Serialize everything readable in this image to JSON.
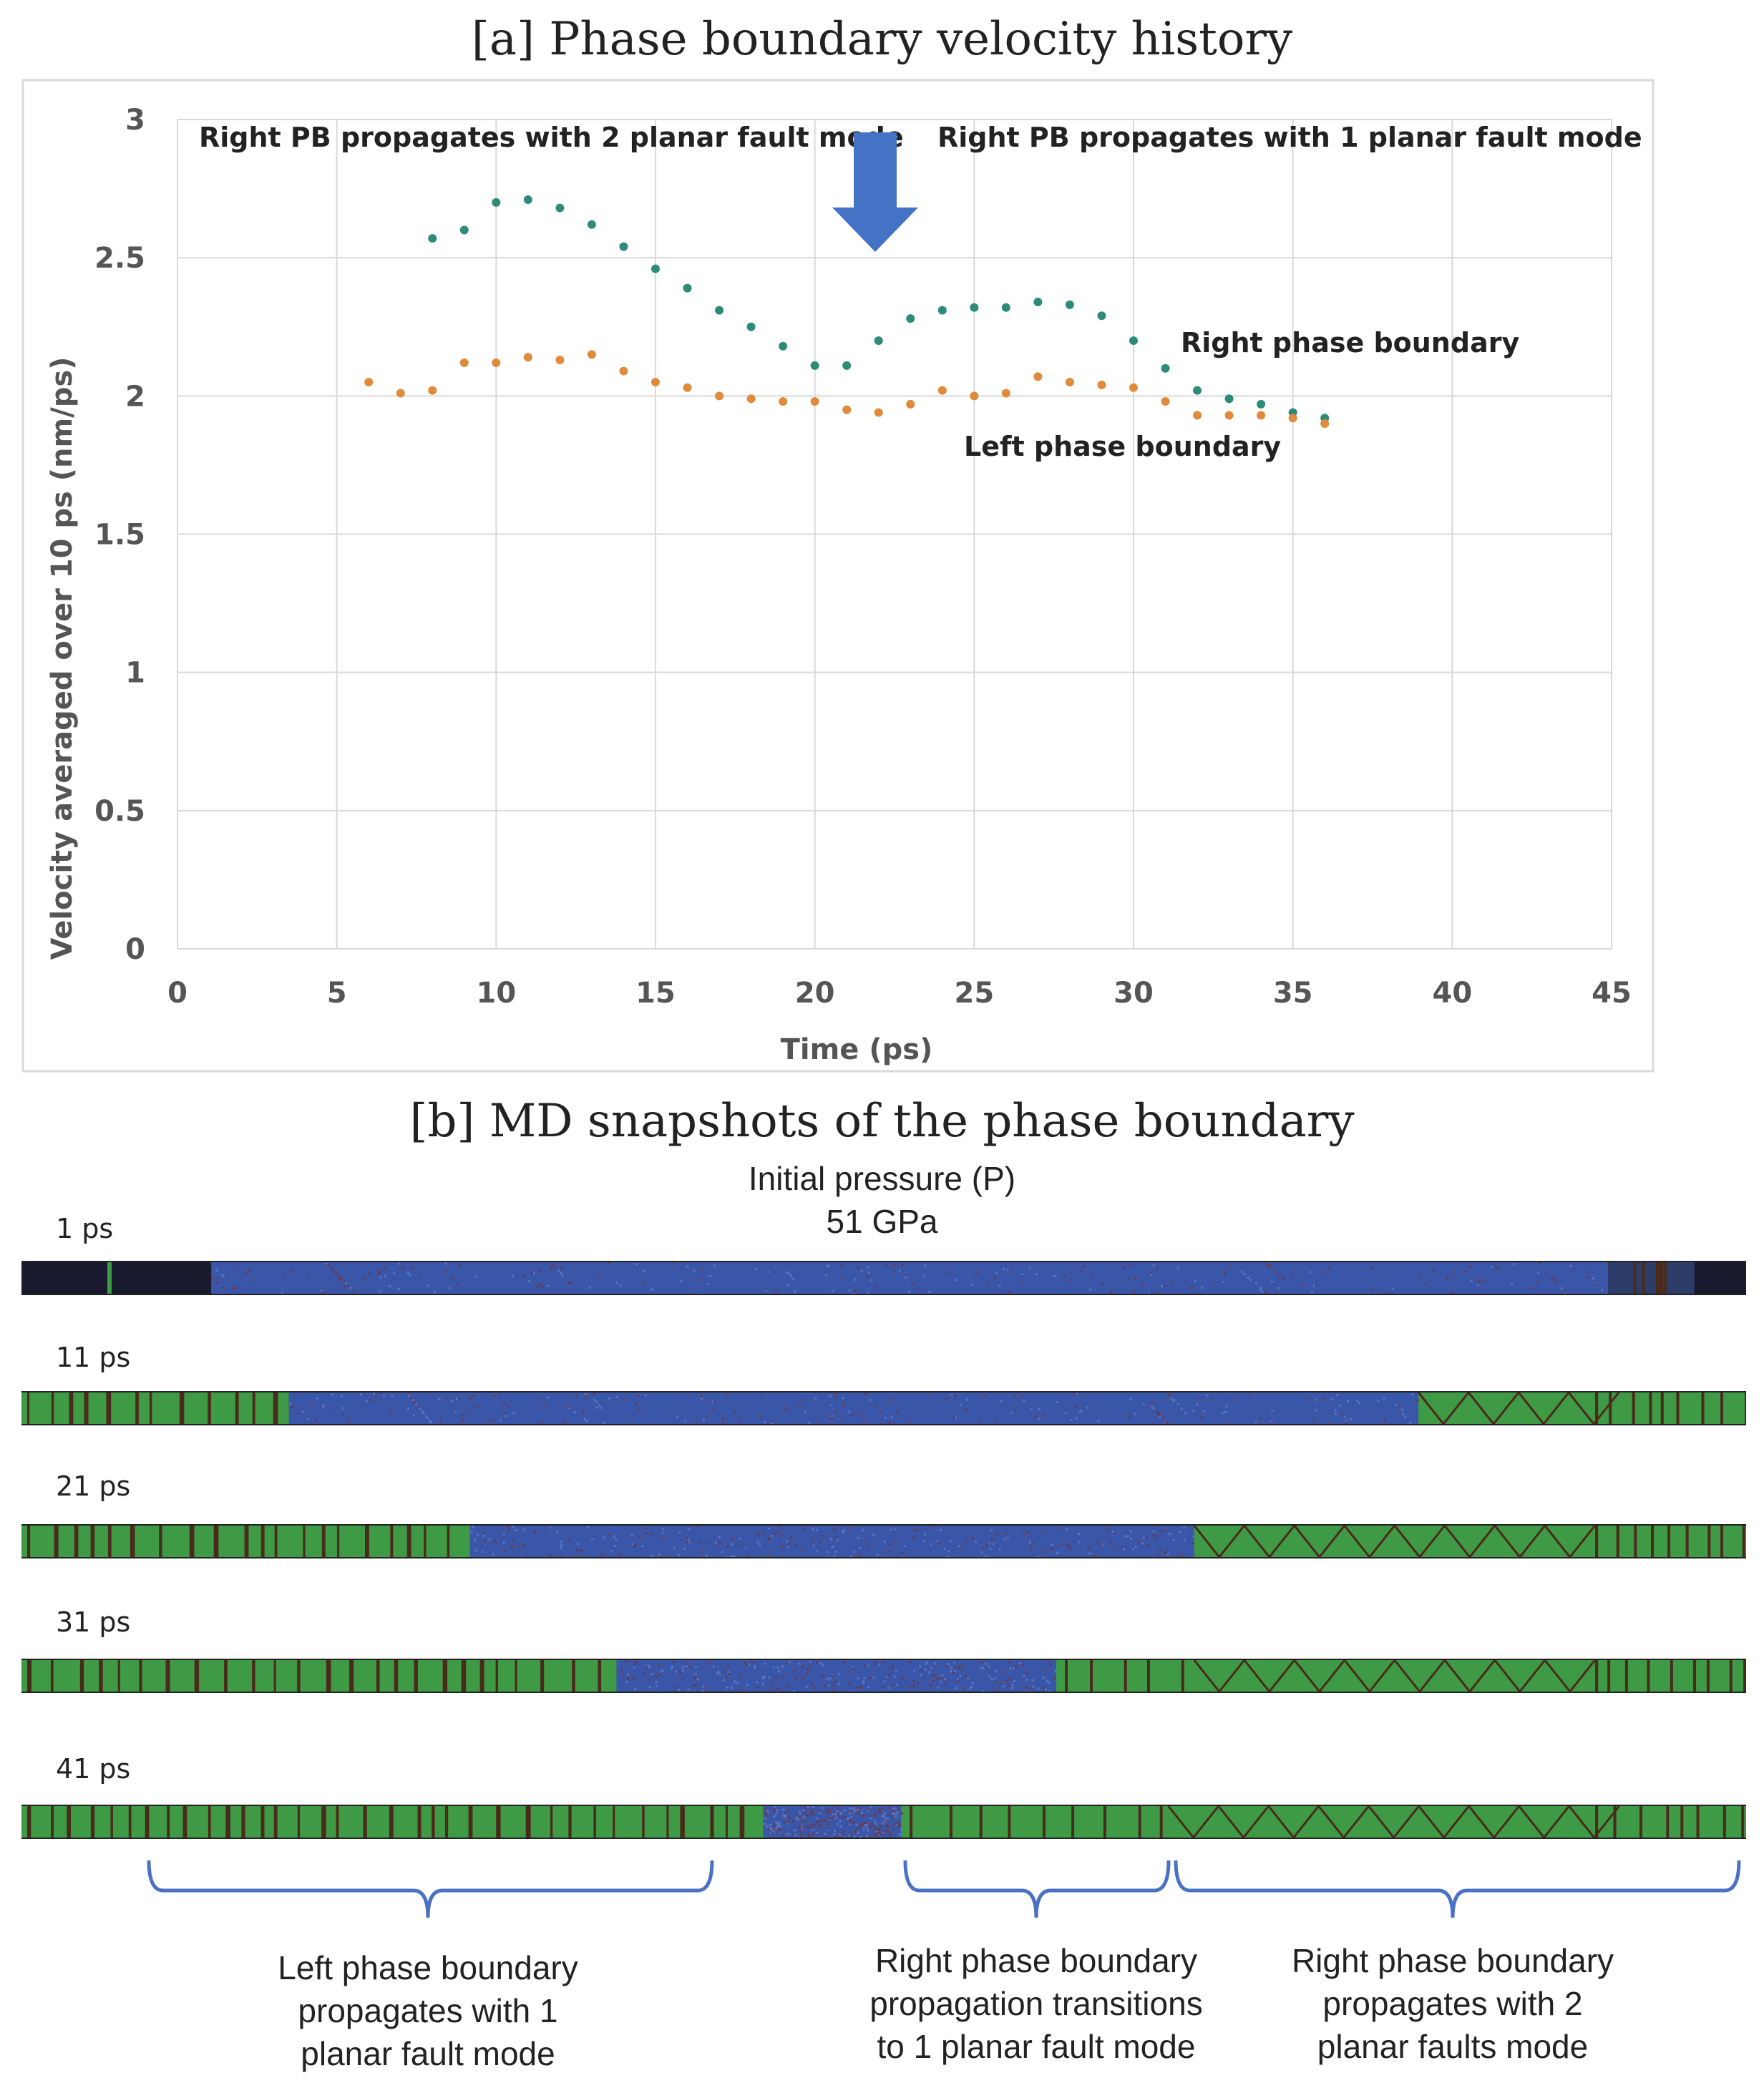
{
  "panel_a_title": "[a] Phase boundary velocity history",
  "panel_b_title": "[b] MD snapshots of the phase boundary",
  "chart_data": {
    "type": "scatter",
    "title": "[a] Phase boundary velocity history",
    "xlabel": "Time (ps)",
    "ylabel": "Velocity averaged over 10 ps (nm/ps)",
    "xlim": [
      0,
      45
    ],
    "ylim": [
      0,
      3
    ],
    "xticks": [
      "0",
      "5",
      "10",
      "15",
      "20",
      "25",
      "30",
      "35",
      "40",
      "45"
    ],
    "yticks": [
      "0",
      "0.5",
      "1",
      "1.5",
      "2",
      "2.5",
      "3"
    ],
    "grid": true,
    "series": [
      {
        "name": "Right phase boundary",
        "color": "#2e8b7a",
        "x": [
          8,
          9,
          10,
          11,
          12,
          13,
          14,
          15,
          16,
          17,
          18,
          19,
          20,
          21,
          22,
          23,
          24,
          25,
          26,
          27,
          28,
          29,
          30,
          31,
          32,
          33,
          34,
          35,
          36
        ],
        "y": [
          2.57,
          2.6,
          2.7,
          2.71,
          2.68,
          2.62,
          2.54,
          2.46,
          2.39,
          2.31,
          2.25,
          2.18,
          2.11,
          2.11,
          2.2,
          2.28,
          2.31,
          2.32,
          2.32,
          2.34,
          2.33,
          2.29,
          2.2,
          2.1,
          2.02,
          1.99,
          1.97,
          1.94,
          1.92
        ]
      },
      {
        "name": "Left phase boundary",
        "color": "#e08a3c",
        "x": [
          6,
          7,
          8,
          9,
          10,
          11,
          12,
          13,
          14,
          15,
          16,
          17,
          18,
          19,
          20,
          21,
          22,
          23,
          24,
          25,
          26,
          27,
          28,
          29,
          30,
          31,
          32,
          33,
          34,
          35,
          36
        ],
        "y": [
          2.05,
          2.01,
          2.02,
          2.12,
          2.12,
          2.14,
          2.13,
          2.15,
          2.09,
          2.05,
          2.03,
          2.0,
          1.99,
          1.98,
          1.98,
          1.95,
          1.94,
          1.97,
          2.02,
          2.0,
          2.01,
          2.07,
          2.05,
          2.04,
          2.03,
          1.98,
          1.93,
          1.93,
          1.93,
          1.92,
          1.9
        ]
      }
    ],
    "annotations": [
      {
        "text": "Right PB propagates with 2 planar fault mode"
      },
      {
        "text": "Right PB propagates with 1 planar fault mode"
      },
      {
        "text": "Right phase boundary"
      },
      {
        "text": "Left phase boundary"
      }
    ],
    "arrow_at_x": 22,
    "arrow_color": "#4472c4"
  },
  "snapshots": {
    "pressure_line1": "Initial pressure (P)",
    "pressure_line2": "51 GPa",
    "labels": [
      "1 ps",
      "11 ps",
      "21 ps",
      "31 ps",
      "41 ps"
    ],
    "colors": {
      "blue_phase": "#3a56a8",
      "green_phase": "#3e9a45",
      "dark": "#1a1a2e",
      "fault": "#4a2a1a"
    }
  },
  "braces": [
    {
      "line1": "Left phase boundary",
      "line2": "propagates with 1",
      "line3": "planar fault mode"
    },
    {
      "line1": "Right phase boundary",
      "line2": "propagation transitions",
      "line3": "to 1 planar fault mode"
    },
    {
      "line1": "Right phase boundary",
      "line2": "propagates with 2",
      "line3": "planar faults mode"
    }
  ],
  "brace_color": "#4a72c4"
}
